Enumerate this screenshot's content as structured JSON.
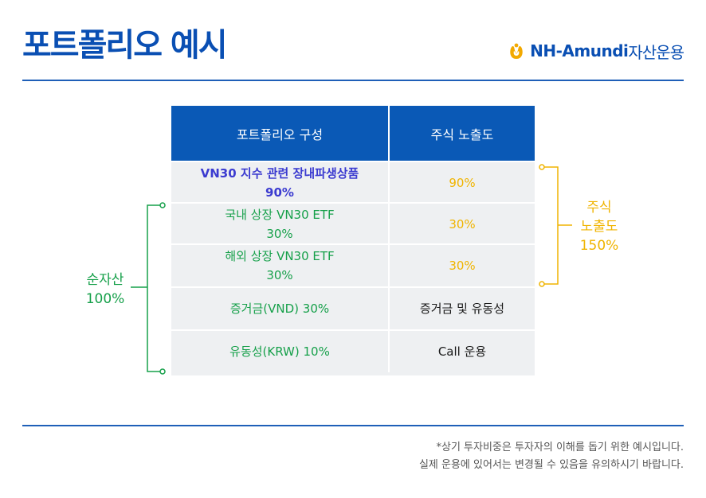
{
  "header": {
    "title": "포트폴리오 예시",
    "logo_latin": "NH-Amundi",
    "logo_korean": "자산운용",
    "brand_color": "#0a4fb3"
  },
  "table": {
    "headers": [
      "포트폴리오 구성",
      "주식 노출도"
    ],
    "rows": [
      {
        "composition": [
          "VN30 지수 관련 장내파생상품",
          "90%"
        ],
        "exposure": "90%"
      },
      {
        "composition": [
          "국내 상장 VN30 ETF",
          "30%"
        ],
        "exposure": "30%"
      },
      {
        "composition": [
          "해외 상장 VN30 ETF",
          "30%"
        ],
        "exposure": "30%"
      },
      {
        "composition": [
          "증거금(VND) 30%"
        ],
        "exposure": "증거금 및 유동성"
      },
      {
        "composition": [
          "유동성(KRW) 10%"
        ],
        "exposure": "Call 운용"
      }
    ],
    "header_color": "#0a59b6",
    "green": "#16a04a",
    "yellow": "#f0b400"
  },
  "left_bracket": {
    "line1": "순자산",
    "line2": "100%"
  },
  "right_bracket": {
    "line1": "주식",
    "line2": "노출도",
    "line3": "150%"
  },
  "footnote": {
    "line1": "*상기 투자비중은 투자자의 이해를 돕기 위한 예시입니다.",
    "line2": "실제 운용에 있어서는 변경될 수 있음을 유의하시기 바랍니다."
  }
}
